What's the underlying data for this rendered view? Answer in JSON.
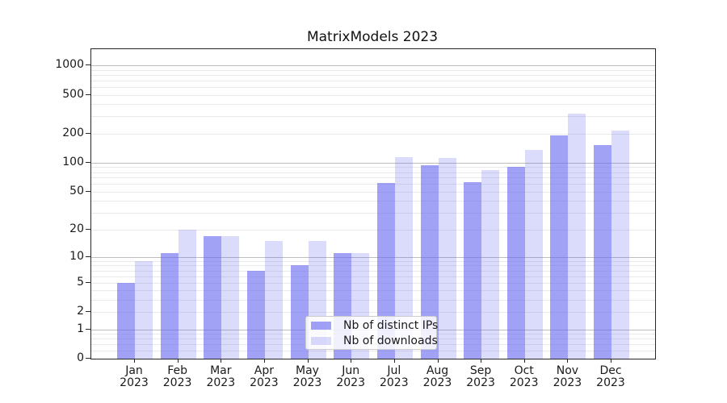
{
  "title": "MatrixModels 2023",
  "chart_data": {
    "type": "bar",
    "title": "MatrixModels 2023",
    "categories": [
      "Jan",
      "Feb",
      "Mar",
      "Apr",
      "May",
      "Jun",
      "Jul",
      "Aug",
      "Sep",
      "Oct",
      "Nov",
      "Dec"
    ],
    "x_year_label": "2023",
    "series": [
      {
        "name": "Nb of distinct IPs",
        "color": "rgba(104,104,240,0.62)",
        "values": [
          5,
          11,
          17,
          7,
          8,
          11,
          62,
          95,
          63,
          90,
          191,
          152
        ]
      },
      {
        "name": "Nb of downloads",
        "color": "rgba(104,104,240,0.24)",
        "values": [
          9,
          20,
          17,
          15,
          15,
          11,
          115,
          113,
          84,
          135,
          320,
          214
        ]
      }
    ],
    "xlabel": "",
    "ylabel": "",
    "yscale": "log1p",
    "ylim": [
      0,
      1450
    ],
    "yticks": [
      0,
      1,
      2,
      5,
      10,
      20,
      50,
      100,
      200,
      500,
      1000
    ],
    "grid_major": [
      1,
      10,
      100,
      1000
    ],
    "grid_minor": [
      0.2,
      0.4,
      0.6,
      0.8,
      2,
      3,
      4,
      5,
      6,
      7,
      8,
      9,
      20,
      30,
      40,
      50,
      60,
      70,
      80,
      90,
      200,
      300,
      400,
      500,
      600,
      700,
      800,
      900
    ],
    "legend_position": "lower-center-inside",
    "colors": {
      "bar_dark": "rgba(104,104,240,0.62)",
      "bar_light": "rgba(104,104,240,0.24)",
      "grid_major": "#bdbdbd",
      "grid_minor": "#e9e9e9",
      "spine": "#262626",
      "text": "#1a1a1a"
    }
  }
}
